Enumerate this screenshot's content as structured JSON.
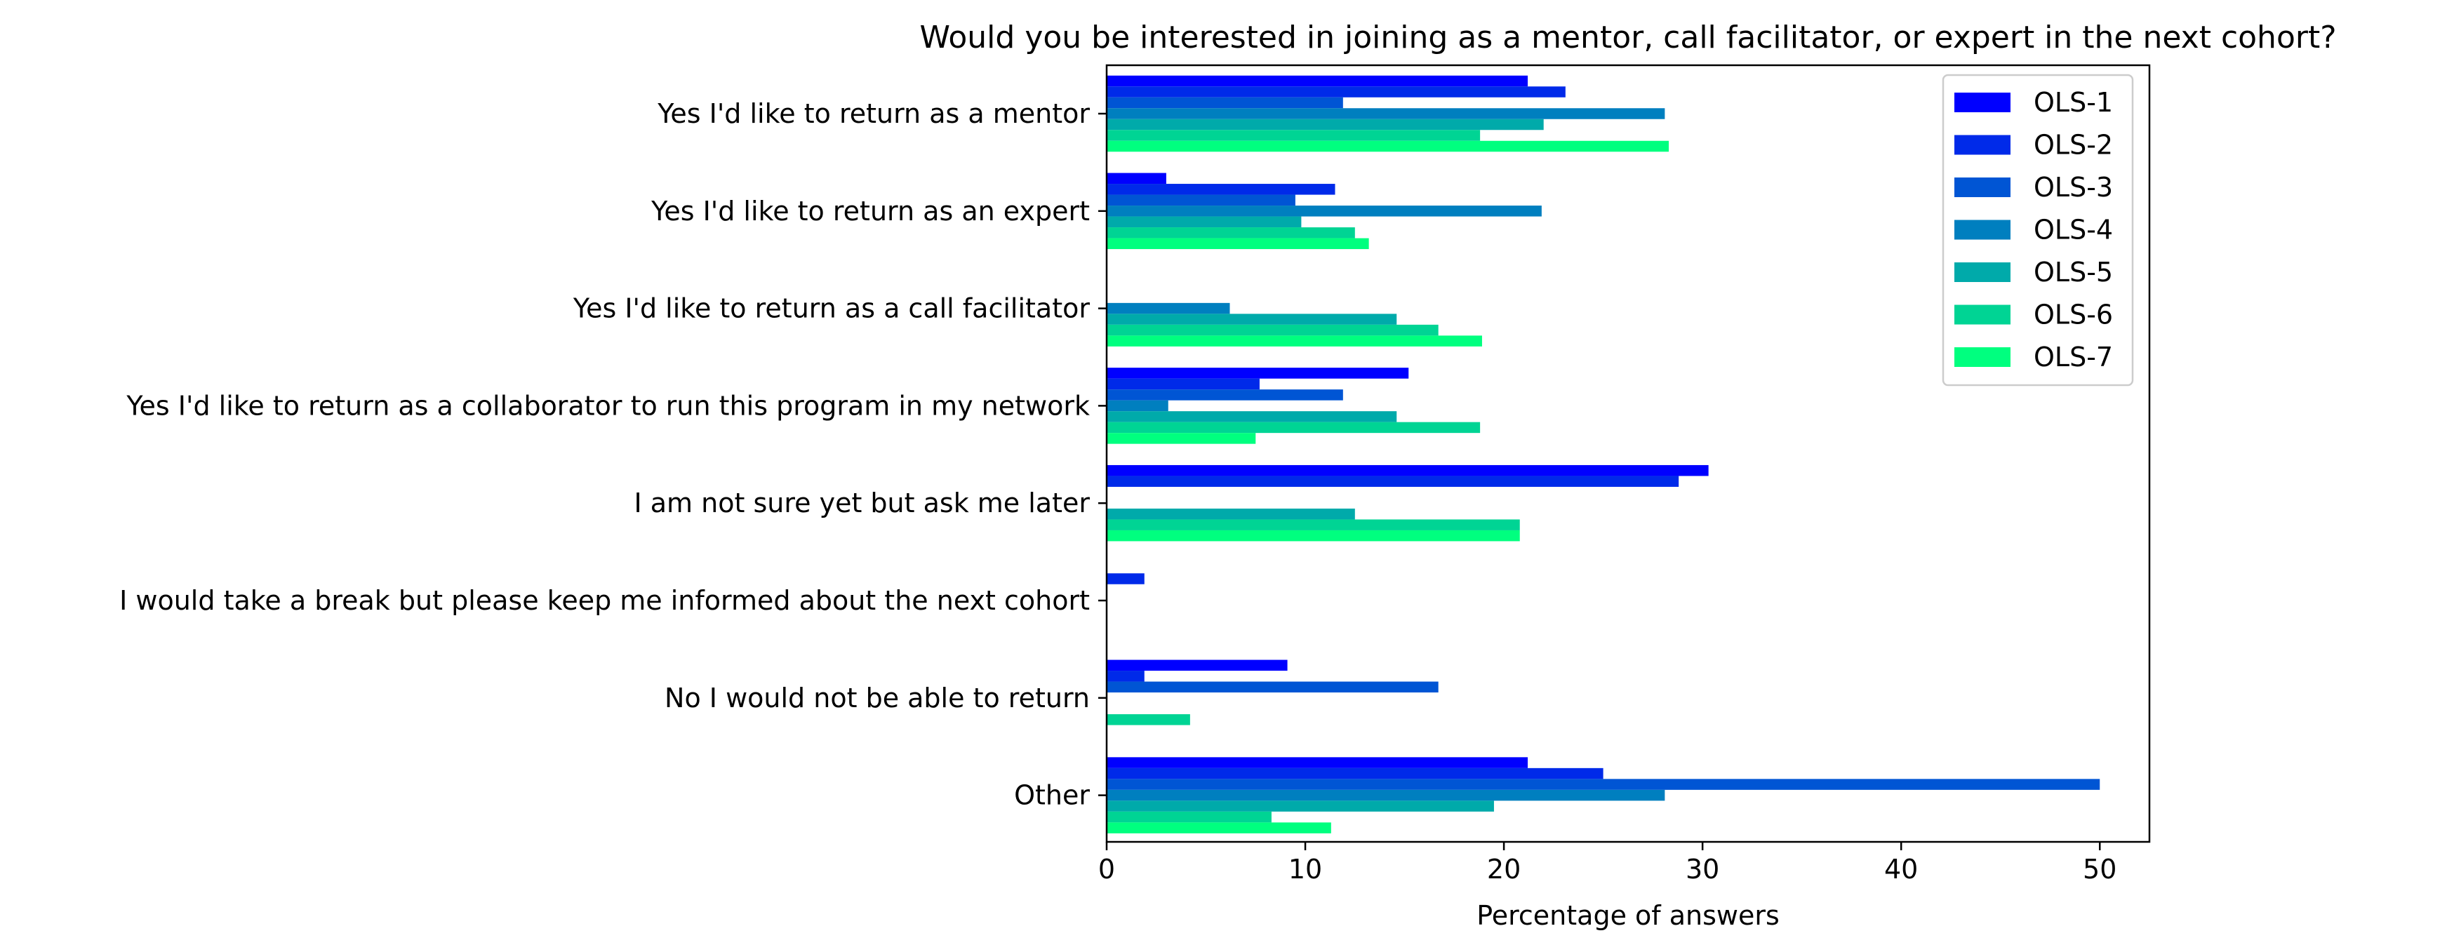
{
  "chart_data": {
    "type": "bar",
    "orientation": "horizontal",
    "title": "Would you be interested in joining as a mentor, call facilitator, or expert in the next cohort?",
    "xlabel": "Percentage of answers",
    "ylabel": "",
    "xlim": [
      0,
      52.5
    ],
    "xticks": [
      0,
      10,
      20,
      30,
      40,
      50
    ],
    "grid": false,
    "legend_position": "top-right",
    "categories": [
      "Yes I'd like to return as a mentor",
      "Yes I'd like to return as an expert",
      "Yes I'd like to return as a call facilitator",
      "Yes I'd like to return as a collaborator to run this program in my network",
      "I am not sure yet but ask me later",
      "I would take a break but please keep me informed about the next cohort",
      "No I would not be able to return",
      "Other"
    ],
    "series": [
      {
        "name": "OLS-1",
        "color": "#0000ff",
        "values": [
          21.2,
          3.0,
          0,
          15.2,
          30.3,
          0,
          9.1,
          21.2
        ]
      },
      {
        "name": "OLS-2",
        "color": "#002ae9",
        "values": [
          23.1,
          11.5,
          0,
          7.7,
          28.8,
          1.9,
          1.9,
          25.0
        ]
      },
      {
        "name": "OLS-3",
        "color": "#0055d4",
        "values": [
          11.9,
          9.5,
          0,
          11.9,
          0,
          0,
          16.7,
          50.0
        ]
      },
      {
        "name": "OLS-4",
        "color": "#007fbf",
        "values": [
          28.1,
          21.9,
          6.2,
          3.1,
          0,
          0,
          0,
          28.1
        ]
      },
      {
        "name": "OLS-5",
        "color": "#00aaaa",
        "values": [
          22.0,
          9.8,
          14.6,
          14.6,
          12.5,
          0,
          0,
          19.5
        ]
      },
      {
        "name": "OLS-6",
        "color": "#00d494",
        "values": [
          18.8,
          12.5,
          16.7,
          18.8,
          20.8,
          0,
          4.2,
          8.3
        ]
      },
      {
        "name": "OLS-7",
        "color": "#00ff7f",
        "values": [
          28.3,
          13.2,
          18.9,
          7.5,
          20.8,
          0,
          0,
          11.3
        ]
      }
    ]
  }
}
